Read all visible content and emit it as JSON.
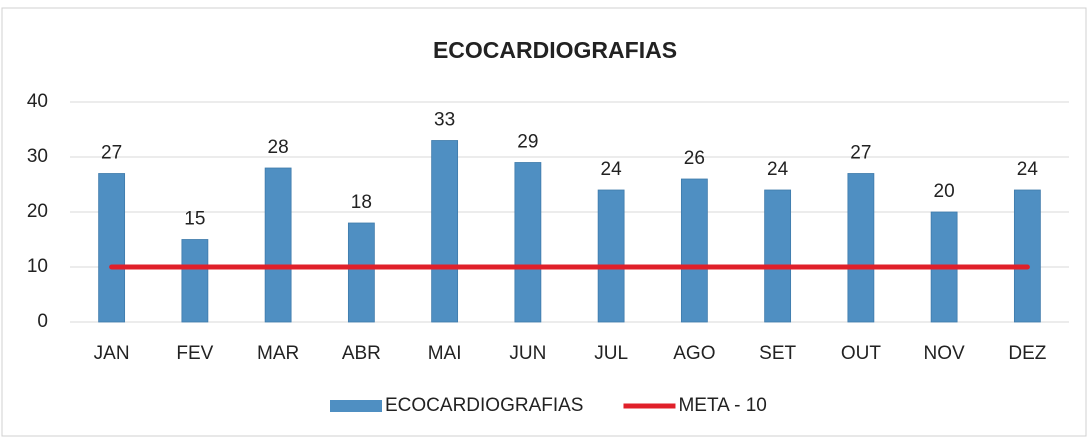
{
  "chart_data": {
    "type": "bar",
    "title": "ECOCARDIOGRAFIAS",
    "categories": [
      "JAN",
      "FEV",
      "MAR",
      "ABR",
      "MAI",
      "JUN",
      "JUL",
      "AGO",
      "SET",
      "OUT",
      "NOV",
      "DEZ"
    ],
    "series": [
      {
        "name": "ECOCARDIOGRAFIAS",
        "type": "bar",
        "color": "#4f8fc2",
        "values": [
          27,
          15,
          28,
          18,
          33,
          29,
          24,
          26,
          24,
          27,
          20,
          24
        ]
      },
      {
        "name": "META - 10",
        "type": "line",
        "color": "#e0202a",
        "values": [
          10,
          10,
          10,
          10,
          10,
          10,
          10,
          10,
          10,
          10,
          10,
          10
        ]
      }
    ],
    "ylim": [
      0,
      40
    ],
    "yticks": [
      0,
      10,
      20,
      30,
      40
    ],
    "grid": true,
    "legend": "bottom"
  }
}
